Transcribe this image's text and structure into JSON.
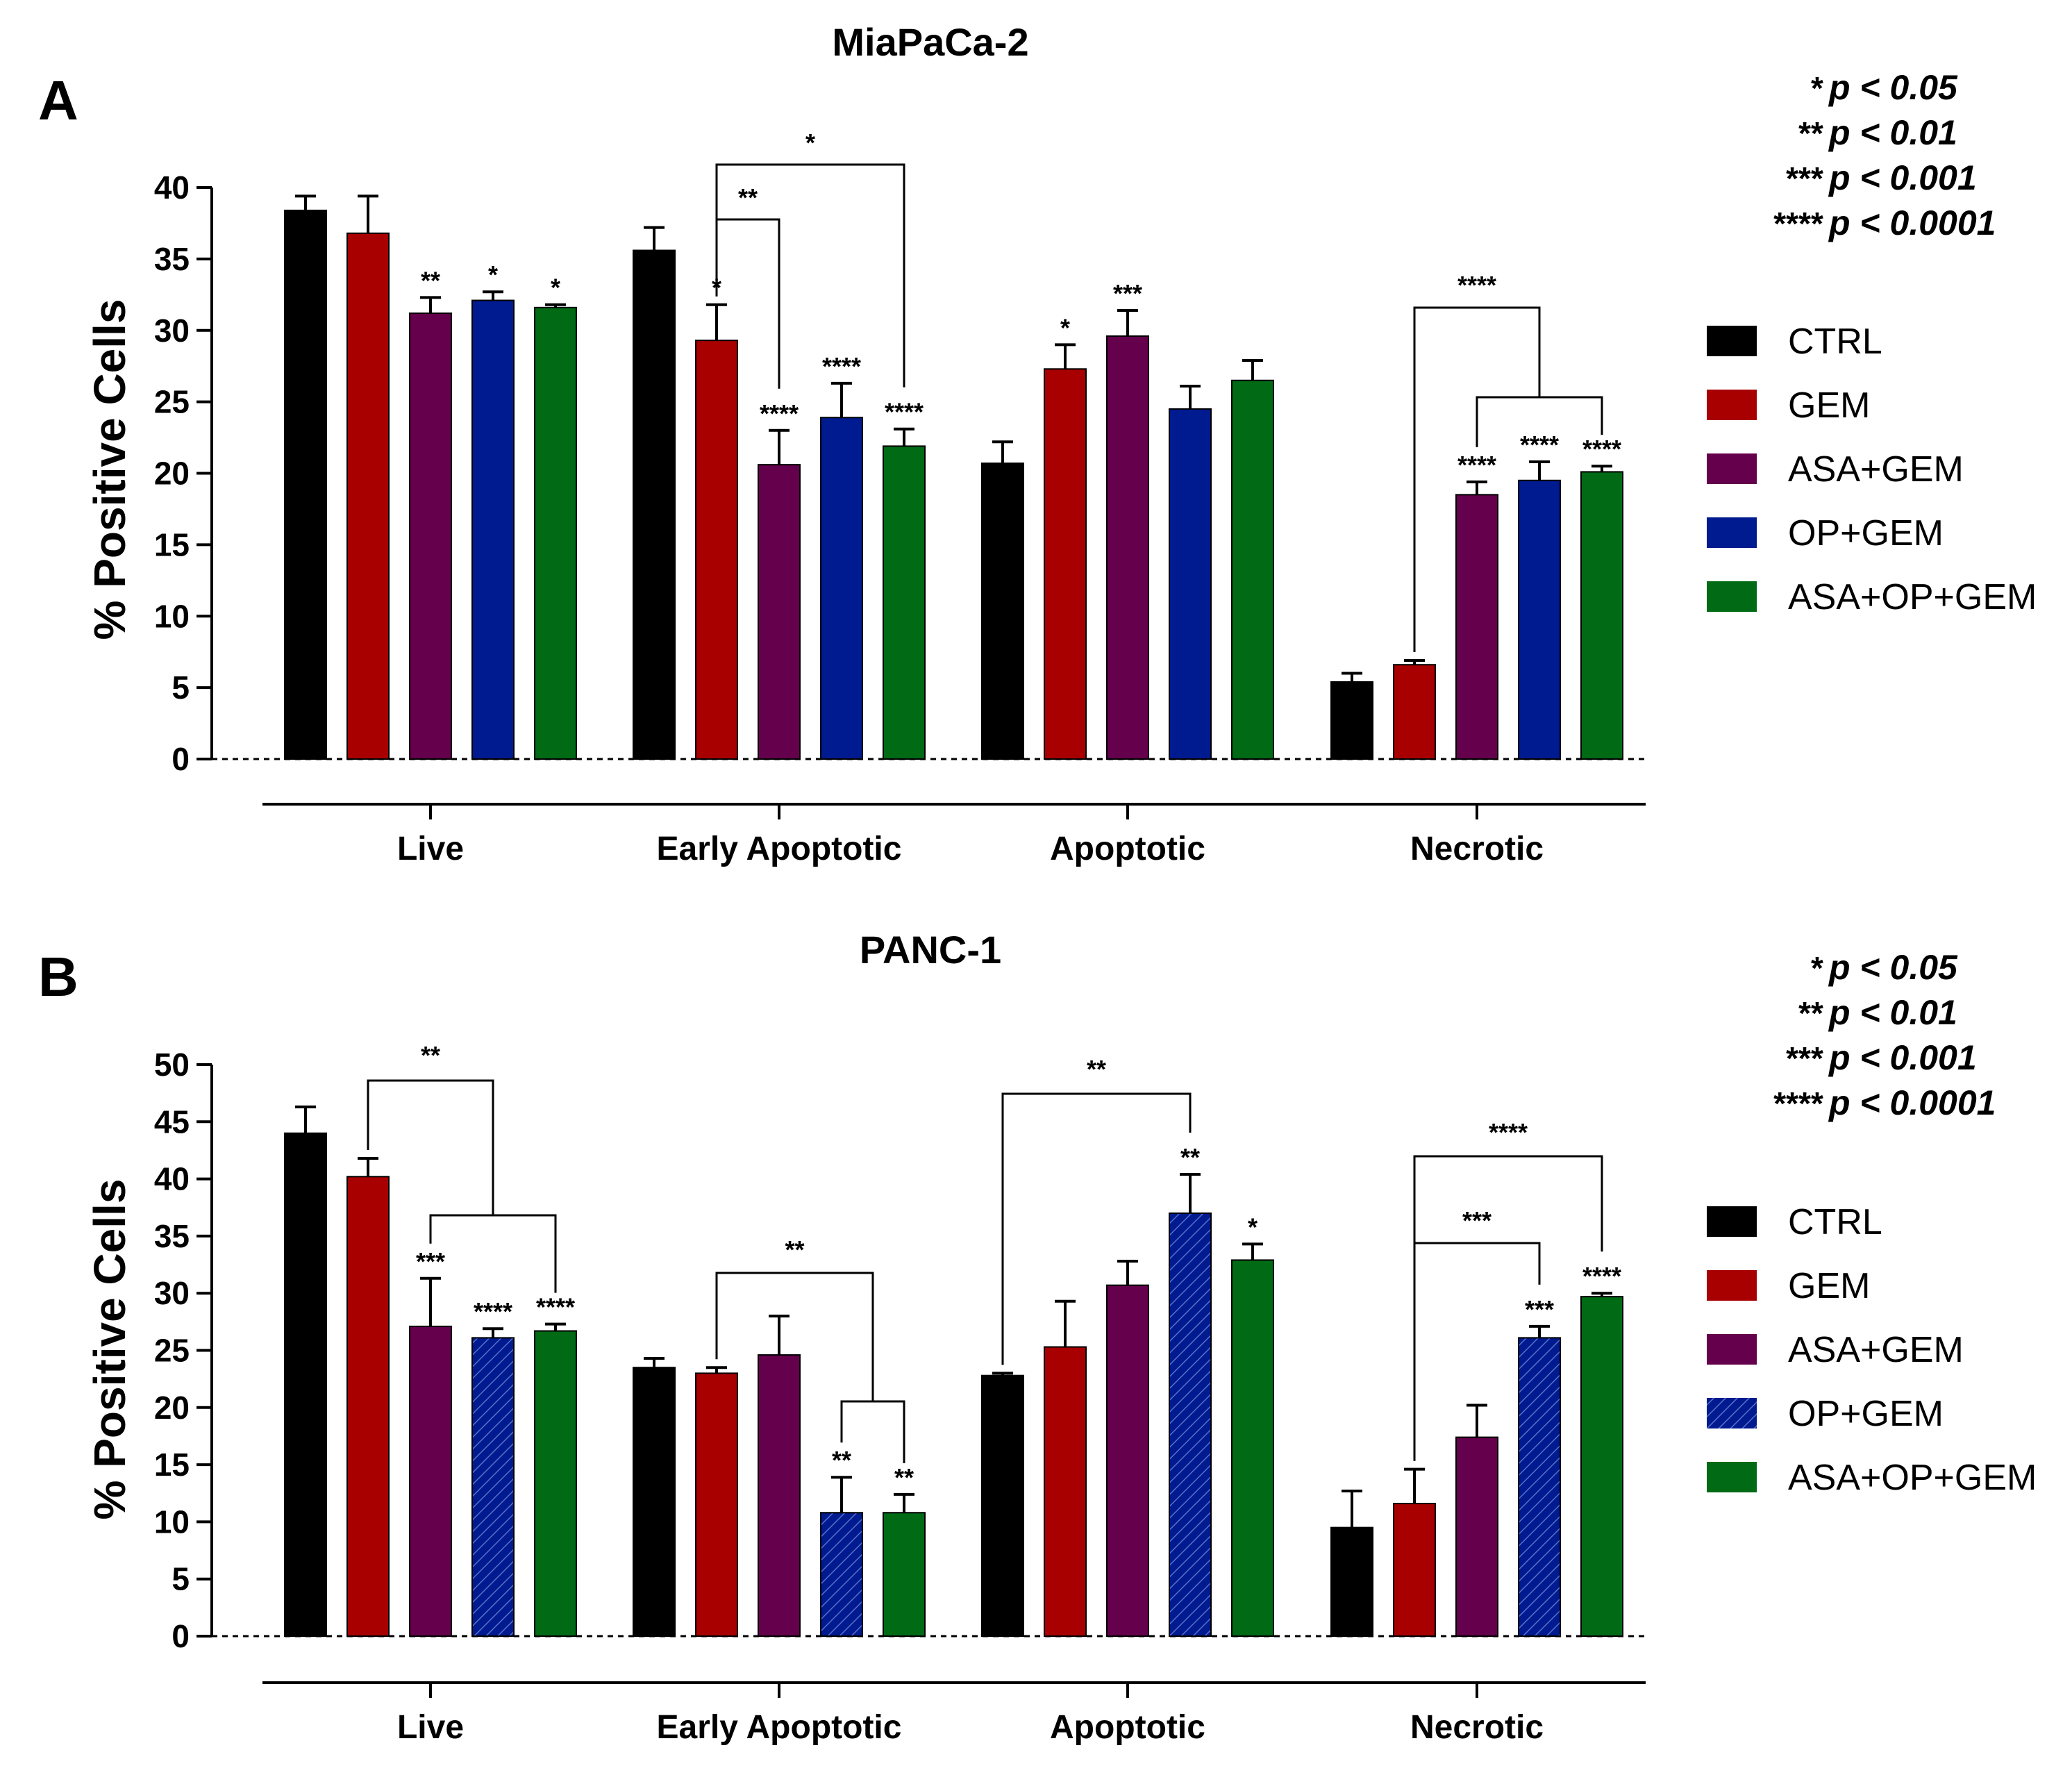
{
  "legend": {
    "entries": [
      {
        "label": "CTRL",
        "color": "#000000",
        "hatched": false
      },
      {
        "label": "GEM",
        "color": "#a80000",
        "hatched": false
      },
      {
        "label": "ASA+GEM",
        "color": "#64004c",
        "hatched": false
      },
      {
        "label": "OP+GEM",
        "color": "#001a90",
        "hatched": false
      },
      {
        "label": "ASA+OP+GEM",
        "color": "#006a15",
        "hatched": false
      }
    ]
  },
  "pvalues": [
    {
      "stars": "*",
      "text": "p < 0.05"
    },
    {
      "stars": "**",
      "text": "p < 0.01"
    },
    {
      "stars": "***",
      "text": "p < 0.001"
    },
    {
      "stars": "****",
      "text": "p < 0.0001"
    }
  ],
  "chart_data": [
    {
      "panel": "A",
      "title": "MiaPaCa-2",
      "type": "bar",
      "ylabel": "% Positive Cells",
      "xlabel": "",
      "ylim": [
        0,
        40
      ],
      "yticks": [
        "0",
        "5",
        "10",
        "15",
        "20",
        "25",
        "30",
        "35",
        "40"
      ],
      "categories": [
        "Live",
        "Early Apoptotic",
        "Apoptotic",
        "Necrotic"
      ],
      "series": [
        {
          "name": "CTRL",
          "values": [
            38.4,
            35.6,
            20.7,
            5.4
          ],
          "errors": [
            1.0,
            1.6,
            1.5,
            0.6
          ],
          "sig": [
            "",
            "",
            "",
            ""
          ]
        },
        {
          "name": "GEM",
          "values": [
            36.8,
            29.3,
            27.3,
            6.6
          ],
          "errors": [
            2.6,
            2.5,
            1.7,
            0.3
          ],
          "sig": [
            "",
            "*",
            "*",
            ""
          ]
        },
        {
          "name": "ASA+GEM",
          "values": [
            31.2,
            20.6,
            29.6,
            18.5
          ],
          "errors": [
            1.1,
            2.4,
            1.8,
            0.9
          ],
          "sig": [
            "**",
            "****",
            "***",
            "****"
          ]
        },
        {
          "name": "OP+GEM",
          "values": [
            32.1,
            23.9,
            24.5,
            19.5
          ],
          "errors": [
            0.6,
            2.4,
            1.6,
            1.3
          ],
          "sig": [
            "*",
            "****",
            "",
            "****"
          ]
        },
        {
          "name": "ASA+OP+GEM",
          "values": [
            31.6,
            21.9,
            26.5,
            20.1
          ],
          "errors": [
            0.2,
            1.2,
            1.4,
            0.4
          ],
          "sig": [
            "*",
            "****",
            "",
            "****"
          ]
        }
      ],
      "brackets": [
        {
          "label": "*",
          "from": [
            1,
            1
          ],
          "to": [
            1,
            4
          ]
        },
        {
          "label": "**",
          "from": [
            1,
            1
          ],
          "to": [
            1,
            2
          ]
        },
        {
          "label": "****",
          "from": [
            3,
            1
          ],
          "to_group": [
            3,
            2,
            4
          ]
        }
      ]
    },
    {
      "panel": "B",
      "title": "PANC-1",
      "type": "bar",
      "ylabel": "% Positive Cells",
      "xlabel": "",
      "ylim": [
        0,
        50
      ],
      "yticks": [
        "0",
        "5",
        "10",
        "15",
        "20",
        "25",
        "30",
        "35",
        "40",
        "45",
        "50"
      ],
      "categories": [
        "Live",
        "Early Apoptotic",
        "Apoptotic",
        "Necrotic"
      ],
      "series": [
        {
          "name": "CTRL",
          "values": [
            44.0,
            23.5,
            22.8,
            9.5
          ],
          "errors": [
            2.3,
            0.8,
            0.2,
            3.2
          ],
          "sig": [
            "",
            "",
            "",
            ""
          ]
        },
        {
          "name": "GEM",
          "values": [
            40.2,
            23.0,
            25.3,
            11.6
          ],
          "errors": [
            1.6,
            0.5,
            4.0,
            3.0
          ],
          "sig": [
            "",
            "",
            "",
            ""
          ]
        },
        {
          "name": "ASA+GEM",
          "values": [
            27.1,
            24.6,
            30.7,
            17.4
          ],
          "errors": [
            4.2,
            3.4,
            2.1,
            2.8
          ],
          "sig": [
            "***",
            "",
            "",
            ""
          ]
        },
        {
          "name": "OP+GEM",
          "values": [
            26.1,
            10.8,
            37.0,
            26.1
          ],
          "errors": [
            0.8,
            3.1,
            3.4,
            1.0
          ],
          "sig": [
            "****",
            "**",
            "**",
            "***"
          ]
        },
        {
          "name": "ASA+OP+GEM",
          "values": [
            26.7,
            10.8,
            32.9,
            29.7
          ],
          "errors": [
            0.6,
            1.6,
            1.4,
            0.3
          ],
          "sig": [
            "****",
            "**",
            "*",
            "****"
          ]
        }
      ],
      "brackets": [
        {
          "label": "**",
          "from": [
            0,
            1
          ],
          "to_group": [
            0,
            2,
            4
          ]
        },
        {
          "label": "**",
          "from": [
            1,
            1
          ],
          "to_group": [
            1,
            3,
            4
          ]
        },
        {
          "label": "**",
          "from": [
            2,
            0
          ],
          "to": [
            2,
            3
          ]
        },
        {
          "label": "****",
          "from": [
            3,
            1
          ],
          "to": [
            3,
            4
          ]
        },
        {
          "label": "***",
          "from": [
            3,
            1
          ],
          "to": [
            3,
            3
          ]
        }
      ]
    }
  ]
}
